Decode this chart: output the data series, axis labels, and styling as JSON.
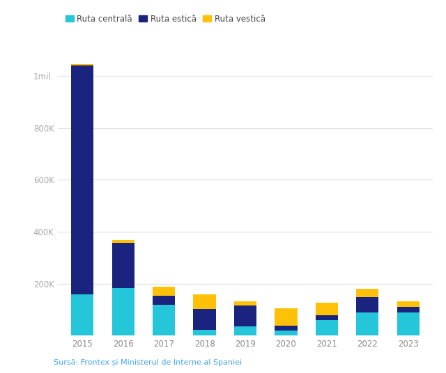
{
  "years": [
    2015,
    2016,
    2017,
    2018,
    2019,
    2020,
    2021,
    2022,
    2023
  ],
  "ruta_centrala": [
    160000,
    182000,
    118000,
    23500,
    35000,
    20000,
    60000,
    90000,
    90000
  ],
  "ruta_estica": [
    880000,
    175000,
    37000,
    80000,
    80000,
    18000,
    20000,
    58000,
    22000
  ],
  "ruta_vestica": [
    5000,
    10000,
    33000,
    55000,
    17000,
    68000,
    48000,
    33000,
    20000
  ],
  "color_centrala": "#26C6DA",
  "color_estica": "#1A237E",
  "color_vestica": "#FFC107",
  "bg_color": "#ffffff",
  "grid_color": "#e0e0e0",
  "label_centrala": "Ruta centrală",
  "label_estica": "Ruta estică",
  "label_vestica": "Ruta vestică",
  "source_full": "Sursă: Frontex și Ministerul de Interne al Spaniei",
  "source_color": "#42A5F5",
  "yticks": [
    0,
    200000,
    400000,
    600000,
    800000,
    1000000
  ],
  "ytick_labels": [
    "",
    "200K",
    "400K",
    "600K",
    "800K",
    "1mil."
  ],
  "ylim": [
    0,
    1120000
  ]
}
